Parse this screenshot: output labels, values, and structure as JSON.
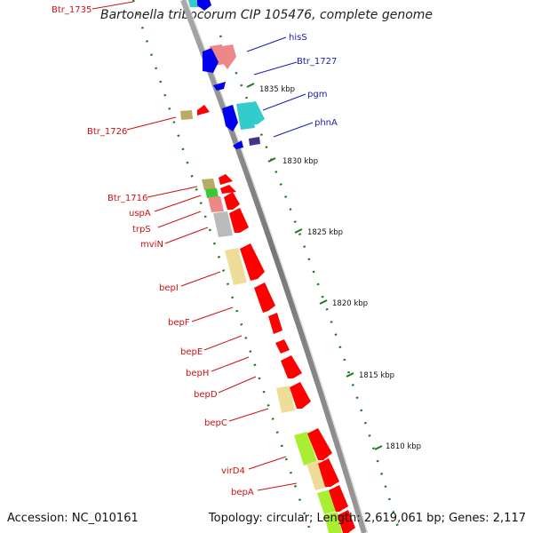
{
  "title": "Bartonella tribocorum CIP 105476, complete genome",
  "footer": {
    "accession": "Accession: NC_010161",
    "summary": "Topology: circular; Length: 2,619,061 bp; Genes: 2,117"
  },
  "scale_ticks": [
    "1835 kbp",
    "1830 kbp",
    "1825 kbp",
    "1820 kbp",
    "1815 kbp",
    "1810 kbp"
  ],
  "gene_labels_left": [
    "Btr_1735",
    "Btr_1726",
    "Btr_1716",
    "uspA",
    "trpS",
    "mviN",
    "bepI",
    "bepF",
    "bepE",
    "bepH",
    "bepD",
    "bepC",
    "virD4",
    "bepA"
  ],
  "gene_labels_right": [
    "hisS",
    "Btr_1727",
    "pgm",
    "phnA"
  ],
  "colors": {
    "backbone": "#888888",
    "cds": "#ff0000",
    "blue": "#0000ee",
    "cyan": "#33cccc",
    "pink": "#ee8888",
    "khaki": "#eedd99",
    "olive": "#bbaa66",
    "green": "#33cc33",
    "lime": "#aaee33",
    "grey": "#bbbbbb",
    "navy": "#443388",
    "tick": "#1a7a1a",
    "label_red": "#cc1111",
    "label_blue": "#1a1ab8"
  }
}
